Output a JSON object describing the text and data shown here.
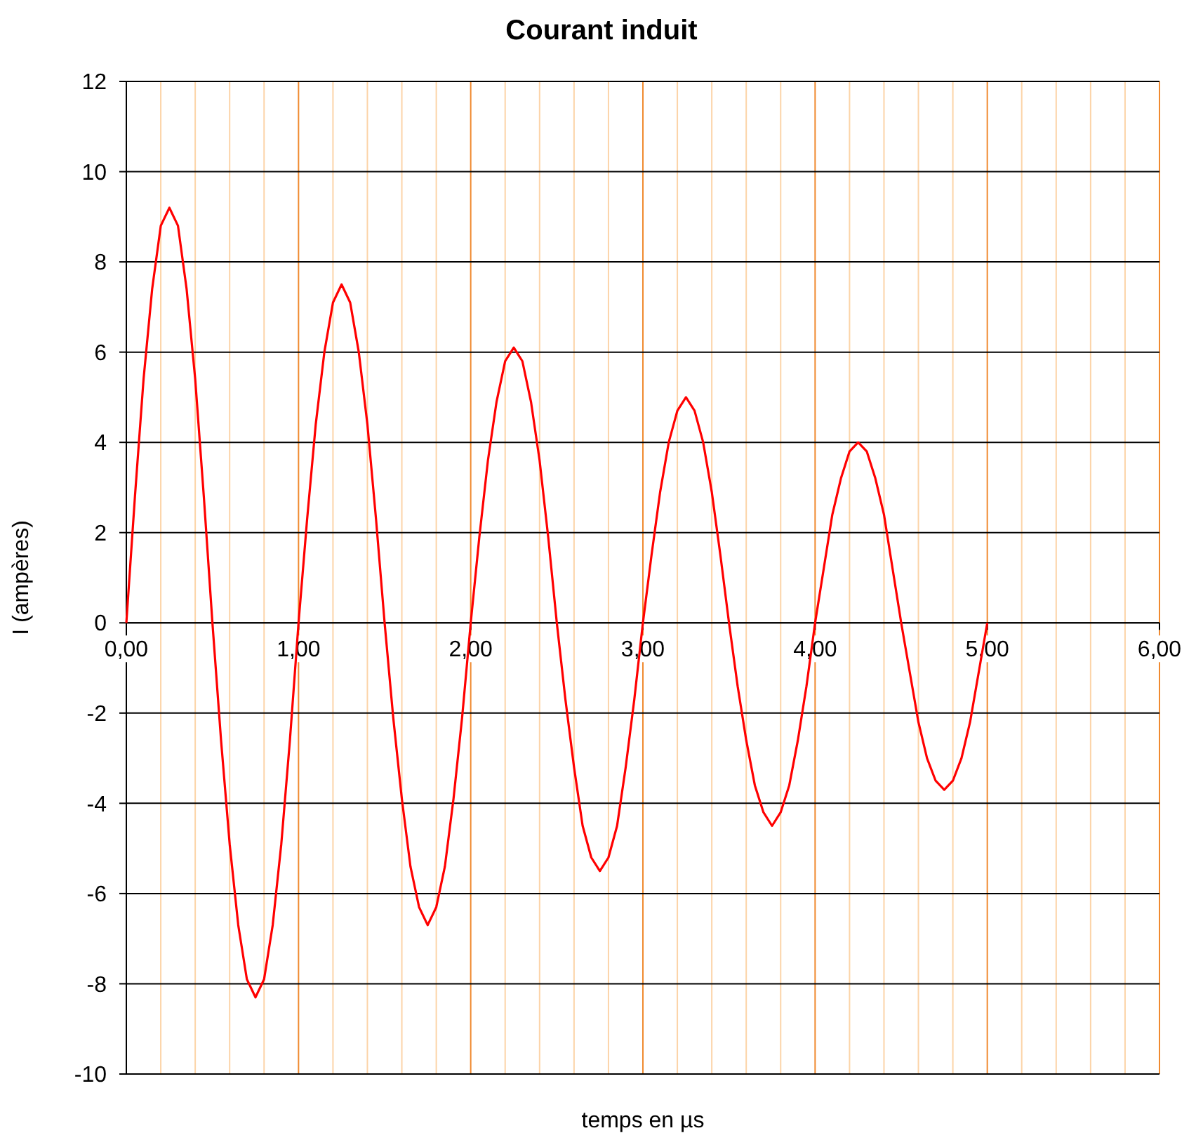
{
  "chart_data": {
    "type": "line",
    "title": "Courant induit",
    "xlabel": "temps en µs",
    "ylabel": "I (ampères)",
    "x": [
      0,
      0.05,
      0.1,
      0.15,
      0.2,
      0.25,
      0.3,
      0.35,
      0.4,
      0.45,
      0.5,
      0.55,
      0.6,
      0.65,
      0.7,
      0.75,
      0.8,
      0.85,
      0.9,
      0.95,
      1,
      1.05,
      1.1,
      1.15,
      1.2,
      1.25,
      1.3,
      1.35,
      1.4,
      1.45,
      1.5,
      1.55,
      1.6,
      1.65,
      1.7,
      1.75,
      1.8,
      1.85,
      1.9,
      1.95,
      2,
      2.05,
      2.1,
      2.15,
      2.2,
      2.25,
      2.3,
      2.35,
      2.4,
      2.45,
      2.5,
      2.55,
      2.6,
      2.65,
      2.7,
      2.75,
      2.8,
      2.85,
      2.9,
      2.95,
      3,
      3.05,
      3.1,
      3.15,
      3.2,
      3.25,
      3.3,
      3.35,
      3.4,
      3.45,
      3.5,
      3.55,
      3.6,
      3.65,
      3.7,
      3.75,
      3.8,
      3.85,
      3.9,
      3.95,
      4,
      4.05,
      4.1,
      4.15,
      4.2,
      4.25,
      4.3,
      4.35,
      4.4,
      4.45,
      4.5,
      4.55,
      4.6,
      4.65,
      4.7,
      4.75,
      4.8,
      4.85,
      4.9,
      4.95,
      5
    ],
    "series": [
      {
        "color": "#ff0000",
        "values": [
          0,
          2.8,
          5.4,
          7.4,
          8.8,
          9.2,
          8.8,
          7.4,
          5.4,
          2.8,
          0,
          -2.6,
          -4.9,
          -6.7,
          -7.9,
          -8.3,
          -7.9,
          -6.7,
          -4.9,
          -2.6,
          0,
          2.3,
          4.4,
          6.0,
          7.1,
          7.5,
          7.1,
          6.0,
          4.4,
          2.3,
          0,
          -2.1,
          -3.9,
          -5.4,
          -6.3,
          -6.7,
          -6.3,
          -5.4,
          -3.9,
          -2.1,
          0,
          1.9,
          3.6,
          4.9,
          5.8,
          6.1,
          5.8,
          4.9,
          3.6,
          1.9,
          0,
          -1.7,
          -3.2,
          -4.5,
          -5.2,
          -5.5,
          -5.2,
          -4.5,
          -3.2,
          -1.7,
          0,
          1.5,
          2.9,
          4.0,
          4.7,
          5.0,
          4.7,
          4.0,
          2.9,
          1.5,
          0,
          -1.4,
          -2.6,
          -3.6,
          -4.2,
          -4.5,
          -4.2,
          -3.6,
          -2.6,
          -1.4,
          0,
          1.2,
          2.4,
          3.2,
          3.8,
          4.0,
          3.8,
          3.2,
          2.4,
          1.2,
          0,
          -1.1,
          -2.2,
          -3.0,
          -3.5,
          -3.7,
          -3.5,
          -3.0,
          -2.2,
          -1.1,
          0
        ]
      }
    ],
    "xlim": [
      0,
      6
    ],
    "ylim": [
      -10,
      12
    ],
    "xticks": [
      {
        "value": 0,
        "label": "0,00"
      },
      {
        "value": 0.2,
        "label": null
      },
      {
        "value": 0.4,
        "label": null
      },
      {
        "value": 0.6,
        "label": null
      },
      {
        "value": 0.8,
        "label": null
      },
      {
        "value": 1,
        "label": "1,00"
      },
      {
        "value": 1.2,
        "label": null
      },
      {
        "value": 1.4,
        "label": null
      },
      {
        "value": 1.6,
        "label": null
      },
      {
        "value": 1.8,
        "label": null
      },
      {
        "value": 2,
        "label": "2,00"
      },
      {
        "value": 2.2,
        "label": null
      },
      {
        "value": 2.4,
        "label": null
      },
      {
        "value": 2.6,
        "label": null
      },
      {
        "value": 2.8,
        "label": null
      },
      {
        "value": 3,
        "label": "3,00"
      },
      {
        "value": 3.2,
        "label": null
      },
      {
        "value": 3.4,
        "label": null
      },
      {
        "value": 3.6,
        "label": null
      },
      {
        "value": 3.8,
        "label": null
      },
      {
        "value": 4,
        "label": "4,00"
      },
      {
        "value": 4.2,
        "label": null
      },
      {
        "value": 4.4,
        "label": null
      },
      {
        "value": 4.6,
        "label": null
      },
      {
        "value": 4.8,
        "label": null
      },
      {
        "value": 5,
        "label": "5,00"
      },
      {
        "value": 5.2,
        "label": null
      },
      {
        "value": 5.4,
        "label": null
      },
      {
        "value": 5.6,
        "label": null
      },
      {
        "value": 5.8,
        "label": null
      },
      {
        "value": 6,
        "label": "6,00"
      }
    ],
    "yticks": [
      -10,
      -8,
      -6,
      -4,
      -2,
      0,
      2,
      4,
      6,
      8,
      10,
      12
    ],
    "grid": true,
    "marker": "none",
    "line_style": "solid"
  }
}
